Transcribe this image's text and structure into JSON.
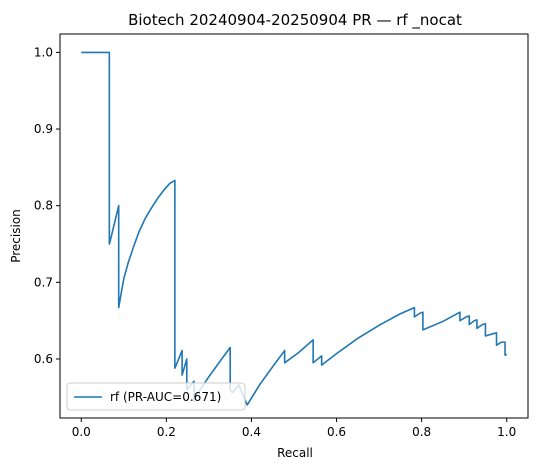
{
  "chart_data": {
    "type": "line",
    "title": "Biotech 20240904-20250904 PR — rf _nocat",
    "xlabel": "Recall",
    "ylabel": "Precision",
    "xlim": [
      -0.05,
      1.05
    ],
    "ylim": [
      0.523,
      1.024
    ],
    "xticks": [
      0.0,
      0.2,
      0.4,
      0.6,
      0.8,
      1.0
    ],
    "xtick_labels": [
      "0.0",
      "0.2",
      "0.4",
      "0.6",
      "0.8",
      "1.0"
    ],
    "yticks": [
      0.6,
      0.7,
      0.8,
      0.9,
      1.0
    ],
    "ytick_labels": [
      "0.6",
      "0.7",
      "0.8",
      "0.9",
      "1.0"
    ],
    "grid": false,
    "legend": {
      "placement": "lower-left",
      "entries": [
        "rf (PR-AUC=0.671)"
      ]
    },
    "series": [
      {
        "name": "rf (PR-AUC=0.671)",
        "color": "#1f77b4",
        "x": [
          0.0,
          0.066,
          0.066,
          0.068,
          0.088,
          0.088,
          0.092,
          0.1,
          0.11,
          0.122,
          0.135,
          0.15,
          0.165,
          0.18,
          0.195,
          0.208,
          0.22,
          0.22,
          0.237,
          0.237,
          0.248,
          0.248,
          0.265,
          0.265,
          0.27,
          0.3,
          0.33,
          0.35,
          0.35,
          0.355,
          0.37,
          0.39,
          0.42,
          0.45,
          0.478,
          0.478,
          0.51,
          0.545,
          0.545,
          0.565,
          0.565,
          0.6,
          0.65,
          0.7,
          0.75,
          0.783,
          0.783,
          0.797,
          0.803,
          0.803,
          0.85,
          0.89,
          0.89,
          0.905,
          0.912,
          0.912,
          0.924,
          0.93,
          0.93,
          0.943,
          0.95,
          0.95,
          0.968,
          0.976,
          0.976,
          0.988,
          0.996,
          0.996,
          1.0
        ],
        "y": [
          1.0,
          1.0,
          0.75,
          0.754,
          0.8,
          0.667,
          0.68,
          0.705,
          0.725,
          0.745,
          0.765,
          0.783,
          0.797,
          0.81,
          0.821,
          0.829,
          0.833,
          0.588,
          0.611,
          0.579,
          0.6,
          0.56,
          0.571,
          0.545,
          0.552,
          0.577,
          0.6,
          0.615,
          0.56,
          0.556,
          0.566,
          0.54,
          0.567,
          0.59,
          0.611,
          0.595,
          0.608,
          0.625,
          0.595,
          0.604,
          0.592,
          0.607,
          0.627,
          0.644,
          0.659,
          0.667,
          0.655,
          0.66,
          0.661,
          0.638,
          0.649,
          0.661,
          0.65,
          0.655,
          0.656,
          0.645,
          0.65,
          0.651,
          0.64,
          0.645,
          0.646,
          0.63,
          0.633,
          0.634,
          0.618,
          0.622,
          0.622,
          0.605,
          0.606
        ]
      }
    ]
  }
}
